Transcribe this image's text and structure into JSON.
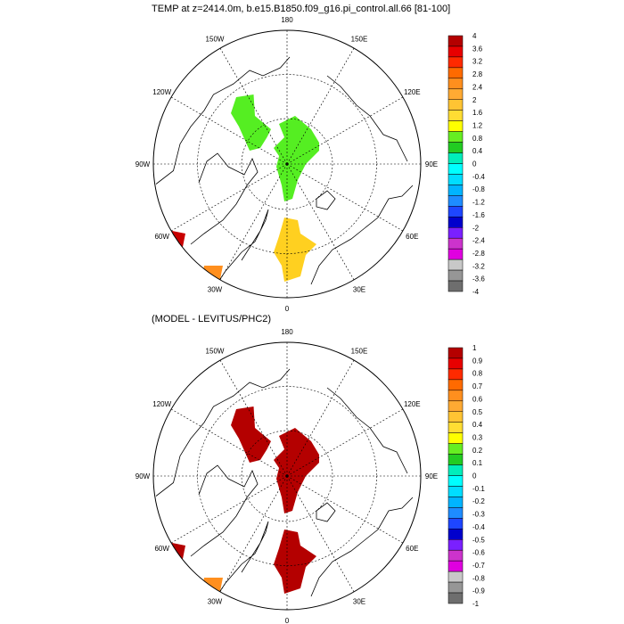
{
  "panels": [
    {
      "title": "TEMP at z=2414.0m, b.e15.B1850.f09_g16.pi_control.all.66 [81-100]",
      "lon_labels": {
        "180": "180",
        "150W": "150W",
        "150E": "150E",
        "120W": "120W",
        "120E": "120E",
        "90W": "90W",
        "90E": "90E",
        "60W": "60W",
        "60E": "60E",
        "30W": "30W",
        "30E": "30E",
        "0": "0"
      },
      "colorbar": {
        "labels": [
          "4",
          "3.6",
          "3.2",
          "2.8",
          "2.4",
          "2",
          "1.6",
          "1.2",
          "0.8",
          "0.4",
          "0",
          "-0.4",
          "-0.8",
          "-1.2",
          "-1.6",
          "-2",
          "-2.4",
          "-2.8",
          "-3.2",
          "-3.6",
          "-4"
        ],
        "colors": [
          "#b40000",
          "#e80000",
          "#ff2a00",
          "#ff6a00",
          "#ff8f1e",
          "#ffaa33",
          "#ffc433",
          "#ffdd33",
          "#ffff00",
          "#66ee22",
          "#22cc22",
          "#00eebb",
          "#00ffff",
          "#00ddff",
          "#00b4ff",
          "#1e8cff",
          "#1e46ff",
          "#0000cc",
          "#7a20ff",
          "#cc33cc",
          "#e000e0",
          "#c8c8c8",
          "#969696",
          "#6e6e6e"
        ]
      },
      "field": [
        {
          "name": "east-siberia-anomaly",
          "value": "0.8 to 1.2",
          "color": "#55ee22"
        },
        {
          "name": "central-arctic-anomaly",
          "value": "0.8 to 1.2",
          "color": "#55ee22"
        },
        {
          "name": "nordic-seas-anomaly",
          "value": "1.2 to 1.6",
          "color": "#ffd020"
        }
      ]
    },
    {
      "title": "(MODEL - LEVITUS/PHC2)",
      "lon_labels": {
        "180": "180",
        "150W": "150W",
        "150E": "150E",
        "120W": "120W",
        "120E": "120E",
        "90W": "90W",
        "90E": "90E",
        "60W": "60W",
        "60E": "60E",
        "30W": "30W",
        "30E": "30E",
        "0": "0"
      },
      "colorbar": {
        "labels": [
          "1",
          "0.9",
          "0.8",
          "0.7",
          "0.6",
          "0.5",
          "0.4",
          "0.3",
          "0.2",
          "0.1",
          "0",
          "-0.1",
          "-0.2",
          "-0.3",
          "-0.4",
          "-0.5",
          "-0.6",
          "-0.7",
          "-0.8",
          "-0.9",
          "-1"
        ],
        "colors": [
          "#b40000",
          "#e80000",
          "#ff2a00",
          "#ff6a00",
          "#ff8f1e",
          "#ffaa33",
          "#ffc433",
          "#ffdd33",
          "#ffff00",
          "#66ee22",
          "#22cc22",
          "#00eebb",
          "#00ffff",
          "#00ddff",
          "#00b4ff",
          "#1e8cff",
          "#1e46ff",
          "#0000cc",
          "#7a20ff",
          "#cc33cc",
          "#e000e0",
          "#c8c8c8",
          "#969696",
          "#6e6e6e"
        ]
      },
      "field": [
        {
          "name": "east-siberia-anomaly",
          "value": "> 1",
          "color": "#b40000"
        },
        {
          "name": "central-arctic-anomaly",
          "value": "> 1",
          "color": "#b40000"
        },
        {
          "name": "nordic-seas-anomaly",
          "value": "> 1",
          "color": "#b40000"
        }
      ]
    }
  ]
}
